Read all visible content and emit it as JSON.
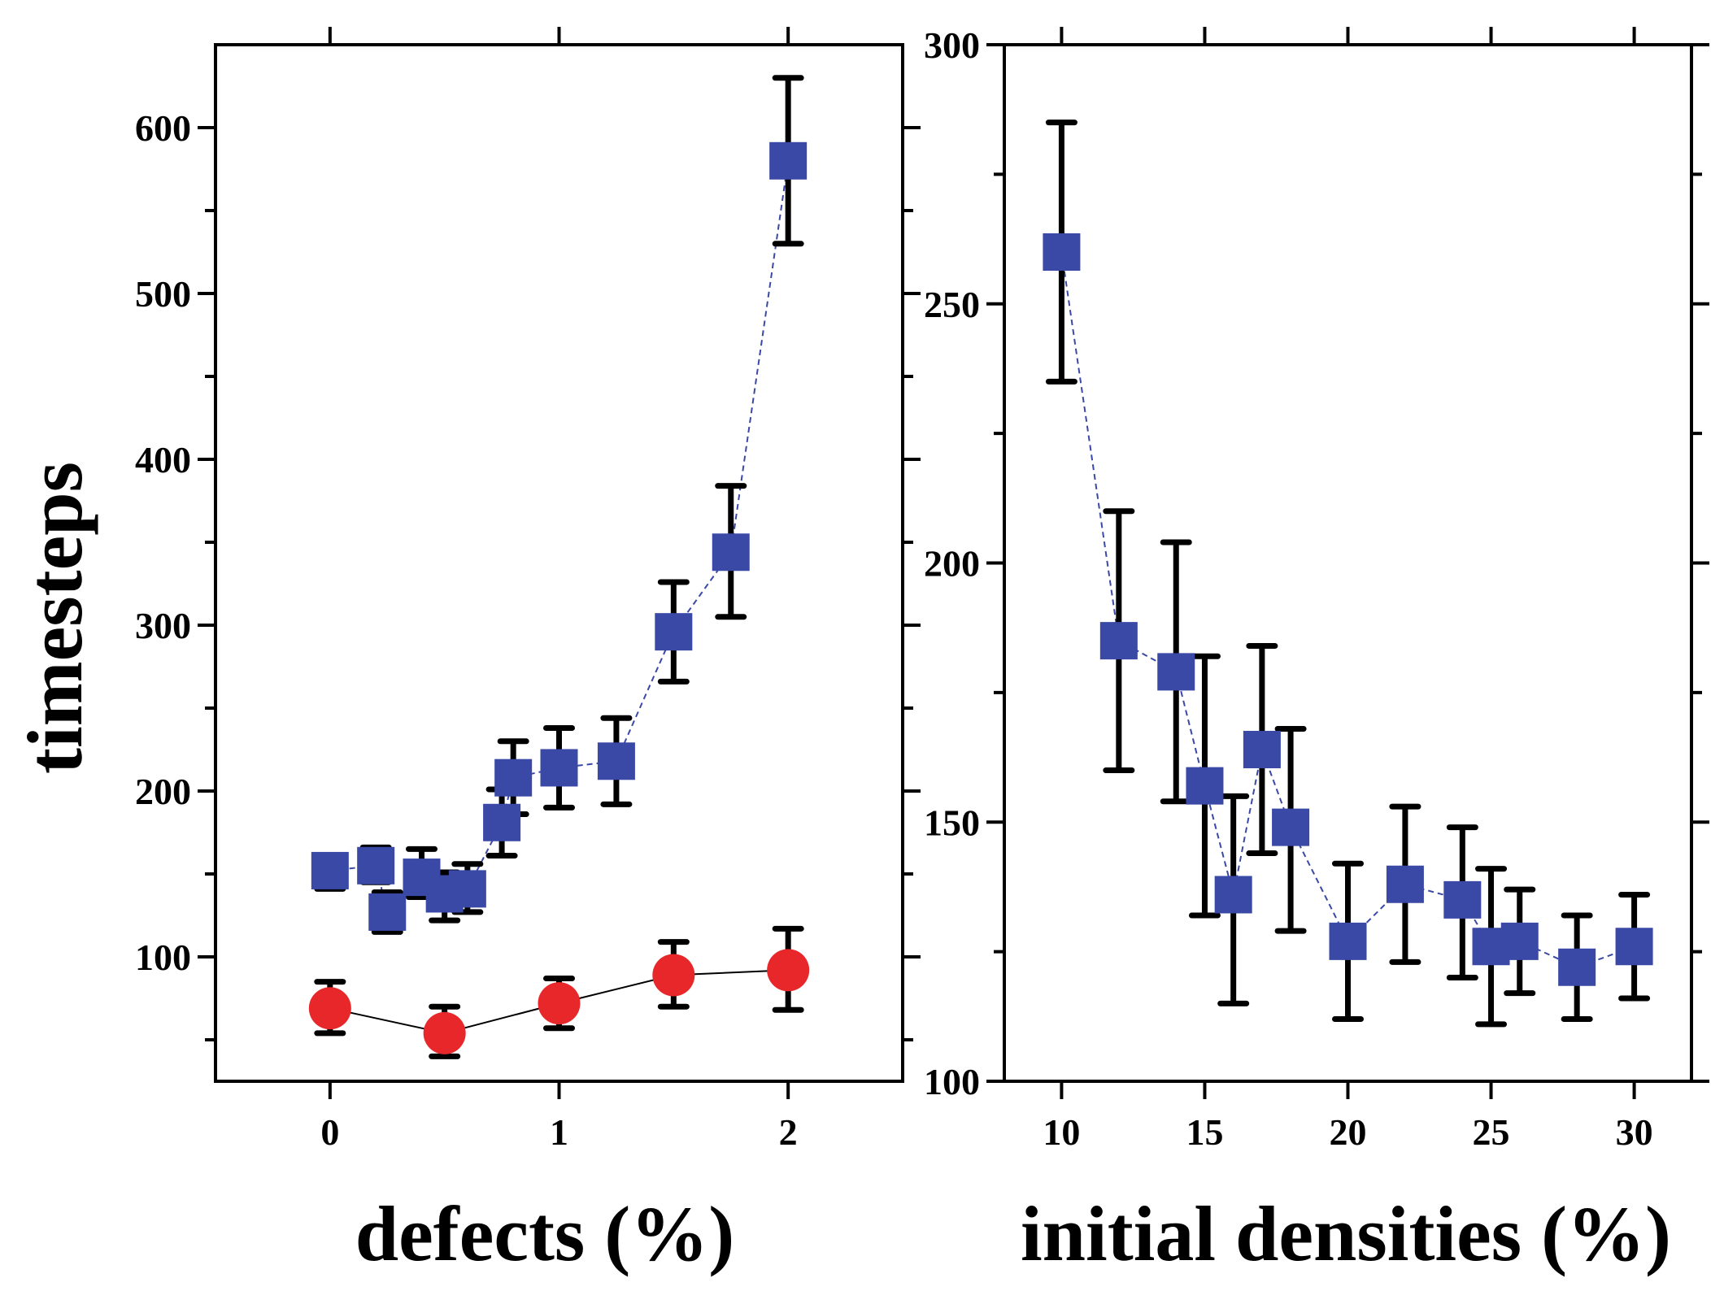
{
  "chart_data": [
    {
      "type": "scatter",
      "panel": "left",
      "xlabel": "defects (%)",
      "ylabel": "timesteps",
      "xlim": [
        -0.5,
        2.5
      ],
      "ylim": [
        25,
        650
      ],
      "xticks": [
        0,
        1,
        2
      ],
      "yticks": [
        100,
        200,
        300,
        400,
        500,
        600
      ],
      "y_minor_ticks": [
        50,
        150,
        250,
        350,
        450,
        550
      ],
      "series": [
        {
          "name": "squares",
          "marker": "square",
          "color": "#3a48a6",
          "line": "dashed",
          "x": [
            0,
            0.2,
            0.25,
            0.4,
            0.5,
            0.6,
            0.75,
            0.8,
            1.0,
            1.25,
            1.5,
            1.75,
            2.0
          ],
          "y": [
            152,
            155,
            127,
            148,
            138,
            141,
            181,
            208,
            214,
            218,
            296,
            344,
            580
          ],
          "err_low": [
            141,
            145,
            115,
            136,
            122,
            127,
            161,
            186,
            190,
            192,
            266,
            305,
            530
          ],
          "err_high": [
            161,
            166,
            139,
            165,
            151,
            156,
            201,
            230,
            238,
            244,
            326,
            384,
            630
          ]
        },
        {
          "name": "circles",
          "marker": "circle",
          "color": "#e8272a",
          "line": "solid",
          "x": [
            0,
            0.5,
            1.0,
            1.5,
            2.0
          ],
          "y": [
            69,
            54,
            72,
            89,
            92
          ],
          "err_low": [
            54,
            40,
            57,
            70,
            68
          ],
          "err_high": [
            85,
            70,
            87,
            109,
            117
          ]
        }
      ]
    },
    {
      "type": "scatter",
      "panel": "right",
      "xlabel": "initial densities (%)",
      "ylabel": "",
      "xlim": [
        8,
        32
      ],
      "ylim": [
        100,
        300
      ],
      "xticks": [
        10,
        15,
        20,
        25,
        30
      ],
      "yticks": [
        100,
        150,
        200,
        250,
        300
      ],
      "y_minor_ticks": [
        125,
        175,
        225,
        275
      ],
      "series": [
        {
          "name": "squares",
          "marker": "square",
          "color": "#3a48a6",
          "line": "dashed",
          "x": [
            10,
            12,
            14,
            15,
            16,
            17,
            18,
            20,
            22,
            24,
            25,
            26,
            28,
            30
          ],
          "y": [
            260,
            185,
            179,
            157,
            136,
            164,
            149,
            127,
            138,
            135,
            126,
            127,
            122,
            126
          ],
          "err_low": [
            235,
            160,
            154,
            132,
            115,
            144,
            129,
            112,
            123,
            120,
            111,
            117,
            112,
            116
          ],
          "err_high": [
            285,
            210,
            204,
            182,
            155,
            184,
            168,
            142,
            153,
            149,
            141,
            137,
            132,
            136
          ]
        }
      ]
    }
  ]
}
